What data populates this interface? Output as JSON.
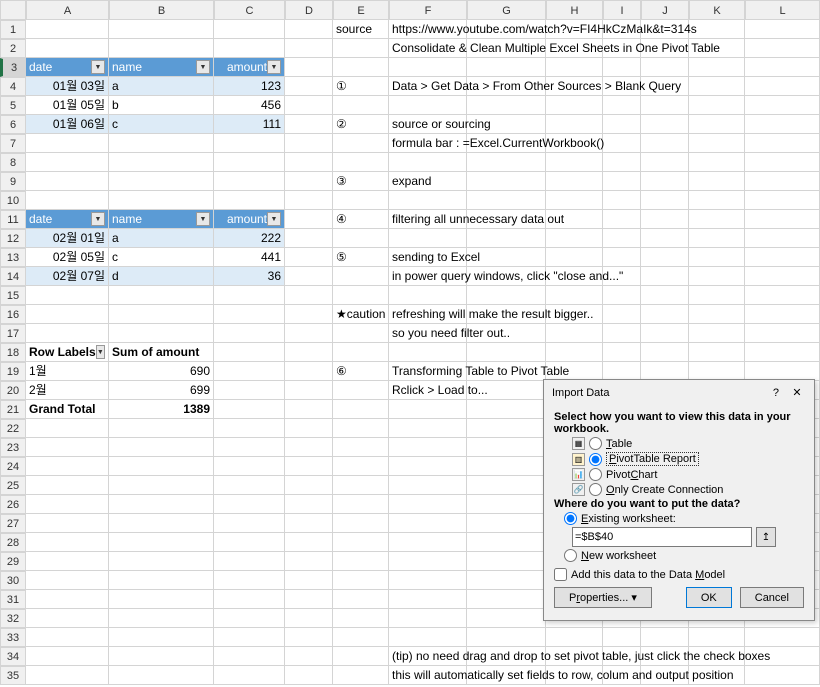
{
  "columns": [
    "",
    "A",
    "B",
    "C",
    "D",
    "E",
    "F",
    "G",
    "H",
    "I",
    "J",
    "K",
    "L"
  ],
  "rows": 35,
  "cells": {
    "E1": "source",
    "F1": "https://www.youtube.com/watch?v=FI4HkCzMaIk&t=314s",
    "F2": "Consolidate & Clean Multiple Excel Sheets in One Pivot Table",
    "A3h": "date",
    "B3h": "name",
    "C3h": "amount",
    "A4": "01월 03일",
    "B4": "a",
    "C4": "123",
    "E4": "①",
    "F4": "Data > Get Data > From Other Sources > Blank Query",
    "A5": "01월 05일",
    "B5": "b",
    "C5": "456",
    "A6": "01월 06일",
    "B6": "c",
    "C6": "111",
    "E6": "②",
    "F6": "source or sourcing",
    "F7": "   formula bar : =Excel.CurrentWorkbook()",
    "E9": "③",
    "F9": "expand",
    "A11h": "date",
    "B11h": "name",
    "C11h": "amount",
    "E11": "④",
    "F11": "filtering all unnecessary data out",
    "A12": "02월 01일",
    "B12": "a",
    "C12": "222",
    "A13": "02월 05일",
    "B13": "c",
    "C13": "441",
    "E13": "⑤",
    "F13": "sending to Excel",
    "A14": "02월 07일",
    "B14": "d",
    "C14": "36",
    "F14": "   in power query windows, click \"close and...\"",
    "E16": "★caution",
    "F16": "refreshing will make the result bigger..",
    "F17": "   so you need filter out..",
    "A18": "Row Labels",
    "B18": "Sum of amount",
    "A19": "1월",
    "B19": "690",
    "E19": "⑥",
    "F19": "Transforming Table to Pivot Table",
    "A20": "2월",
    "B20": "699",
    "F20": "   Rclick > Load to...",
    "A21": "Grand Total",
    "B21": "1389",
    "F34": "(tip) no need drag and drop to set pivot table, just click the check boxes",
    "F35": "   this will automatically set fields to row, colum and output position"
  },
  "dialog": {
    "title": "Import Data",
    "sect1": "Select how you want to view this data in your workbook.",
    "opt_table": "Table",
    "opt_pivot": "PivotTable Report",
    "opt_chart": "PivotChart",
    "opt_conn": "Only Create Connection",
    "sect2": "Where do you want to put the data?",
    "opt_existing": "Existing worksheet:",
    "ref": "=$B$40",
    "opt_new": "New worksheet",
    "chk_model": "Add this data to the Data Model",
    "btn_props": "Properties...",
    "btn_ok": "OK",
    "btn_cancel": "Cancel"
  },
  "colors": {
    "table_header": "#5b9bd5",
    "table_row_a": "#ddebf7",
    "grid": "#d4d4d4",
    "highlight": "#ffeb3b"
  }
}
